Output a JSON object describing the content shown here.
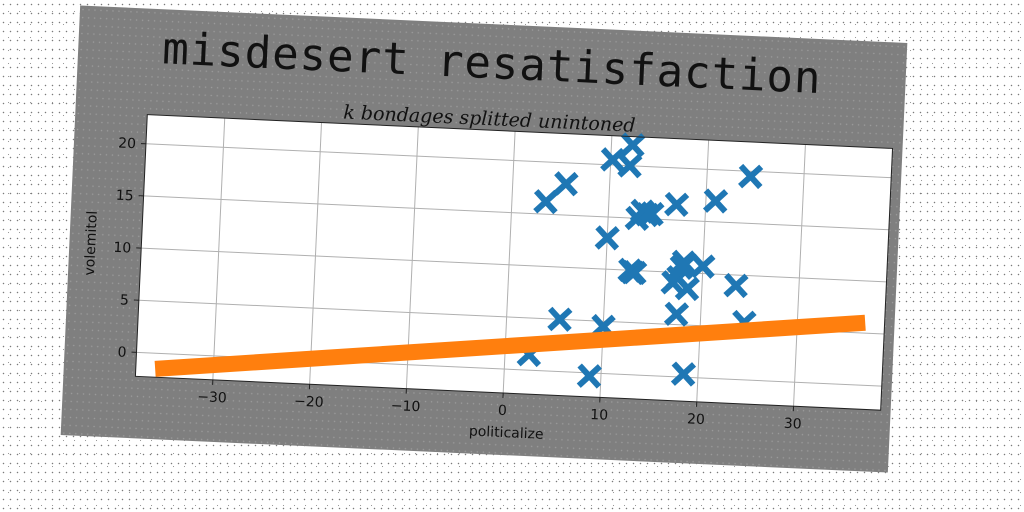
{
  "chart_data": {
    "type": "scatter",
    "title": "misdesert resatisfaction",
    "subtitle": "k bondages splitted unintoned",
    "xlabel": "politicalize",
    "ylabel": "volemitol",
    "xlim": [
      -38,
      39
    ],
    "ylim": [
      -2.3,
      22.8
    ],
    "xticks": [
      -30,
      -20,
      -10,
      0,
      10,
      20,
      30
    ],
    "yticks": [
      0,
      5,
      10,
      15,
      20
    ],
    "grid": true,
    "series": [
      {
        "type": "scatter",
        "marker": "x",
        "color": "#1f77b4",
        "points": [
          [
            2.5,
            1.5
          ],
          [
            5.5,
            5.0
          ],
          [
            8.8,
            -0.3
          ],
          [
            10.0,
            4.5
          ],
          [
            3.5,
            16.2
          ],
          [
            5.5,
            18.0
          ],
          [
            10.2,
            20.5
          ],
          [
            12.2,
            22.0
          ],
          [
            12.0,
            20.0
          ],
          [
            10.0,
            13.0
          ],
          [
            13.0,
            15.0
          ],
          [
            13.5,
            15.7
          ],
          [
            14.0,
            15.4
          ],
          [
            14.5,
            15.5
          ],
          [
            12.5,
            10.0
          ],
          [
            12.8,
            9.8
          ],
          [
            13.0,
            9.8
          ],
          [
            17.0,
            16.5
          ],
          [
            21.0,
            17.0
          ],
          [
            24.5,
            19.5
          ],
          [
            17.0,
            9.0
          ],
          [
            17.5,
            9.5
          ],
          [
            17.8,
            10.5
          ],
          [
            18.0,
            11.0
          ],
          [
            18.5,
            8.5
          ],
          [
            20.0,
            10.7
          ],
          [
            23.5,
            9.0
          ],
          [
            17.5,
            6.0
          ],
          [
            18.5,
            0.3
          ],
          [
            24.5,
            5.5
          ]
        ]
      },
      {
        "type": "line",
        "color": "#ff7f0e",
        "points": [
          [
            -36.0,
            -1.5
          ],
          [
            37.0,
            6.0
          ]
        ]
      }
    ]
  }
}
